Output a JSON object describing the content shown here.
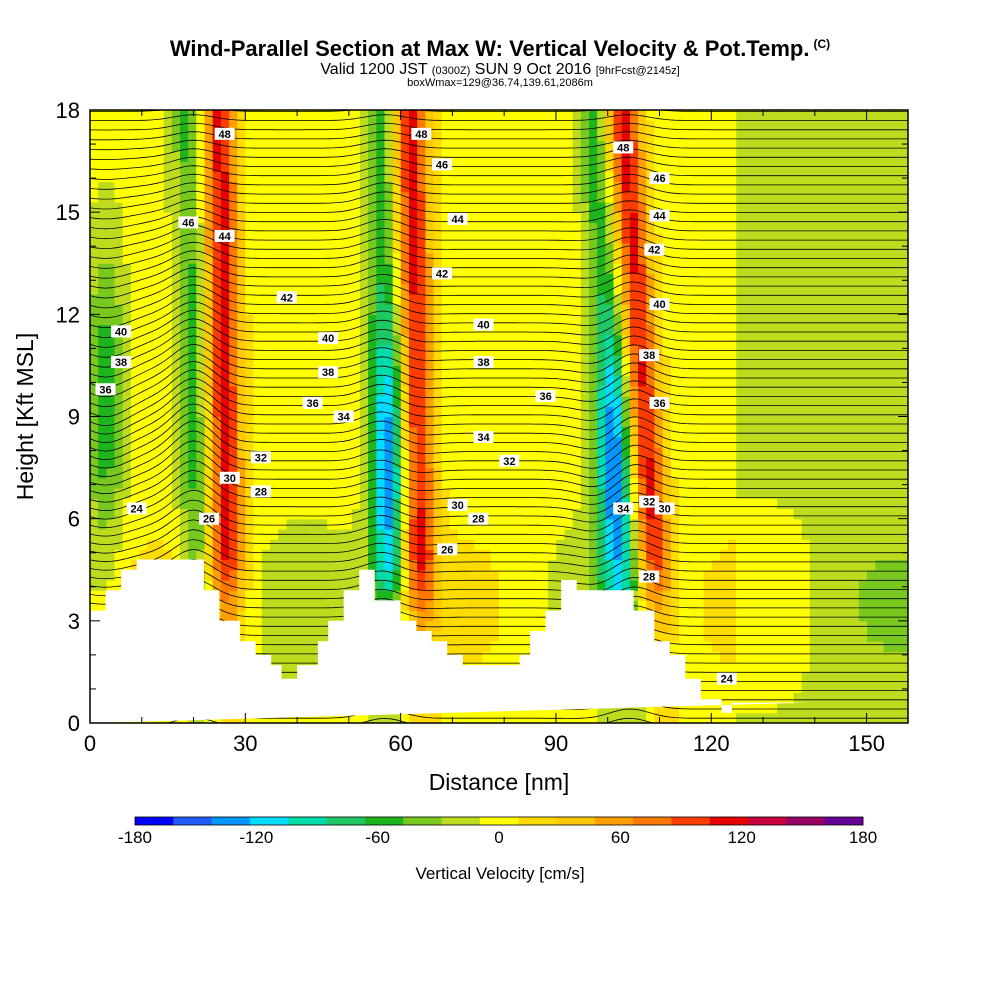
{
  "title": "Wind-Parallel Section at Max W: Vertical Velocity & Pot.Temp.",
  "title_mark": "(C)",
  "subtitle_main": "Valid 1200 JST",
  "subtitle_utc": "(0300Z)",
  "subtitle_date": "SUN 9 Oct 2016",
  "subtitle_fcst": "[9hrFcst@2145z]",
  "subtitle2": "boxWmax=129@36.74,139.61,2086m",
  "chart_data": {
    "type": "heatmap",
    "xlabel": "Distance [nm]",
    "ylabel": "Height [Kft MSL]",
    "xlim": [
      0,
      158
    ],
    "ylim": [
      0,
      18
    ],
    "xticks": [
      0,
      30,
      60,
      90,
      120,
      150
    ],
    "xtick_labels": [
      "0",
      "30",
      "60",
      "90",
      "120",
      "150"
    ],
    "yticks": [
      0,
      3,
      6,
      9,
      12,
      15,
      18
    ],
    "ytick_labels": [
      "0",
      "3",
      "6",
      "9",
      "12",
      "15",
      "18"
    ],
    "colorbar": {
      "label": "Vertical Velocity [cm/s]",
      "min": -180,
      "max": 180,
      "step": 20,
      "tick_values": [
        -180,
        -120,
        -60,
        0,
        60,
        120,
        180
      ],
      "tick_labels": [
        "-180",
        "-120",
        "-60",
        "0",
        "60",
        "120",
        "180"
      ],
      "colors": [
        "#0000ff",
        "#1e5aff",
        "#0096ff",
        "#00dcff",
        "#00dcaa",
        "#1ec864",
        "#1eb41e",
        "#78c81e",
        "#bedc1e",
        "#ffff00",
        "#ffdc00",
        "#ffc800",
        "#ffa000",
        "#ff7800",
        "#ff3c00",
        "#e60000",
        "#c8003c",
        "#960064",
        "#640096"
      ]
    },
    "updrafts": [
      {
        "x_base": 24,
        "x_top": 26,
        "peak_cm_s": 120
      },
      {
        "x_base": 61,
        "x_top": 63,
        "peak_cm_s": 120
      },
      {
        "x_base": 108,
        "x_top": 104,
        "peak_cm_s": 120
      }
    ],
    "downdrafts": [
      {
        "x_center": 58,
        "y_center": 7.5,
        "min_cm_s": -120
      },
      {
        "x_center": 101,
        "y_center": 7.5,
        "min_cm_s": -120
      },
      {
        "x_center": 3,
        "y_center": 9.5,
        "min_cm_s": -80
      }
    ],
    "terrain": {
      "x": [
        0,
        3,
        3,
        6,
        6,
        9,
        9,
        22,
        22,
        25,
        25,
        29,
        29,
        32,
        32,
        35,
        35,
        37,
        37,
        40,
        40,
        44,
        44,
        46,
        46,
        49,
        49,
        52,
        52,
        55,
        55,
        60,
        60,
        63,
        63,
        66,
        66,
        69,
        69,
        72,
        72,
        75,
        75,
        78,
        78,
        83,
        83,
        85,
        85,
        88,
        88,
        91,
        91,
        94,
        94,
        105,
        105,
        109,
        109,
        112,
        112,
        115,
        115,
        118,
        118,
        122,
        122,
        124,
        124,
        139,
        139,
        158
      ],
      "y": [
        3.3,
        3.3,
        3.9,
        3.9,
        4.5,
        4.5,
        4.8,
        4.8,
        3.9,
        3.9,
        3.0,
        3.0,
        2.4,
        2.4,
        2.0,
        2.0,
        1.7,
        1.7,
        1.3,
        1.3,
        1.7,
        1.7,
        2.4,
        2.4,
        3.0,
        3.0,
        3.9,
        3.9,
        4.5,
        4.5,
        3.6,
        3.6,
        3.0,
        3.0,
        2.7,
        2.7,
        2.4,
        2.4,
        2.0,
        2.0,
        1.7,
        1.7,
        1.7,
        1.7,
        1.7,
        1.7,
        2.0,
        2.0,
        2.7,
        2.7,
        3.3,
        3.3,
        4.2,
        4.2,
        3.9,
        3.9,
        3.3,
        3.3,
        2.4,
        2.4,
        2.0,
        2.0,
        1.3,
        1.3,
        0.7,
        0.7,
        0.3,
        0.3,
        0.6,
        0.6,
        0.6
      ]
    },
    "theta_labels": [
      {
        "x": 26,
        "y": 17.3,
        "label": "48"
      },
      {
        "x": 64,
        "y": 17.3,
        "label": "48"
      },
      {
        "x": 103,
        "y": 16.9,
        "label": "48"
      },
      {
        "x": 68,
        "y": 16.4,
        "label": "46"
      },
      {
        "x": 110,
        "y": 16.0,
        "label": "46"
      },
      {
        "x": 19,
        "y": 14.7,
        "label": "46"
      },
      {
        "x": 71,
        "y": 14.8,
        "label": "44"
      },
      {
        "x": 110,
        "y": 14.9,
        "label": "44"
      },
      {
        "x": 26,
        "y": 14.3,
        "label": "44"
      },
      {
        "x": 109,
        "y": 13.9,
        "label": "42"
      },
      {
        "x": 68,
        "y": 13.2,
        "label": "42"
      },
      {
        "x": 38,
        "y": 12.5,
        "label": "42"
      },
      {
        "x": 110,
        "y": 12.3,
        "label": "40"
      },
      {
        "x": 76,
        "y": 11.7,
        "label": "40"
      },
      {
        "x": 6,
        "y": 11.5,
        "label": "40"
      },
      {
        "x": 46,
        "y": 11.3,
        "label": "40"
      },
      {
        "x": 108,
        "y": 10.8,
        "label": "38"
      },
      {
        "x": 76,
        "y": 10.6,
        "label": "38"
      },
      {
        "x": 6,
        "y": 10.6,
        "label": "38"
      },
      {
        "x": 46,
        "y": 10.3,
        "label": "38"
      },
      {
        "x": 3,
        "y": 9.8,
        "label": "36"
      },
      {
        "x": 88,
        "y": 9.6,
        "label": "36"
      },
      {
        "x": 43,
        "y": 9.4,
        "label": "36"
      },
      {
        "x": 110,
        "y": 9.4,
        "label": "36"
      },
      {
        "x": 49,
        "y": 9.0,
        "label": "34"
      },
      {
        "x": 76,
        "y": 8.4,
        "label": "34"
      },
      {
        "x": 33,
        "y": 7.8,
        "label": "32"
      },
      {
        "x": 81,
        "y": 7.7,
        "label": "32"
      },
      {
        "x": 27,
        "y": 7.2,
        "label": "30"
      },
      {
        "x": 33,
        "y": 6.8,
        "label": "28"
      },
      {
        "x": 108,
        "y": 6.5,
        "label": "32"
      },
      {
        "x": 111,
        "y": 6.3,
        "label": "30"
      },
      {
        "x": 71,
        "y": 6.4,
        "label": "30"
      },
      {
        "x": 103,
        "y": 6.3,
        "label": "34"
      },
      {
        "x": 9,
        "y": 6.3,
        "label": "24"
      },
      {
        "x": 23,
        "y": 6.0,
        "label": "26"
      },
      {
        "x": 75,
        "y": 6.0,
        "label": "28"
      },
      {
        "x": 69,
        "y": 5.1,
        "label": "26"
      },
      {
        "x": 108,
        "y": 4.3,
        "label": "28"
      },
      {
        "x": 123,
        "y": 1.3,
        "label": "24"
      }
    ]
  }
}
